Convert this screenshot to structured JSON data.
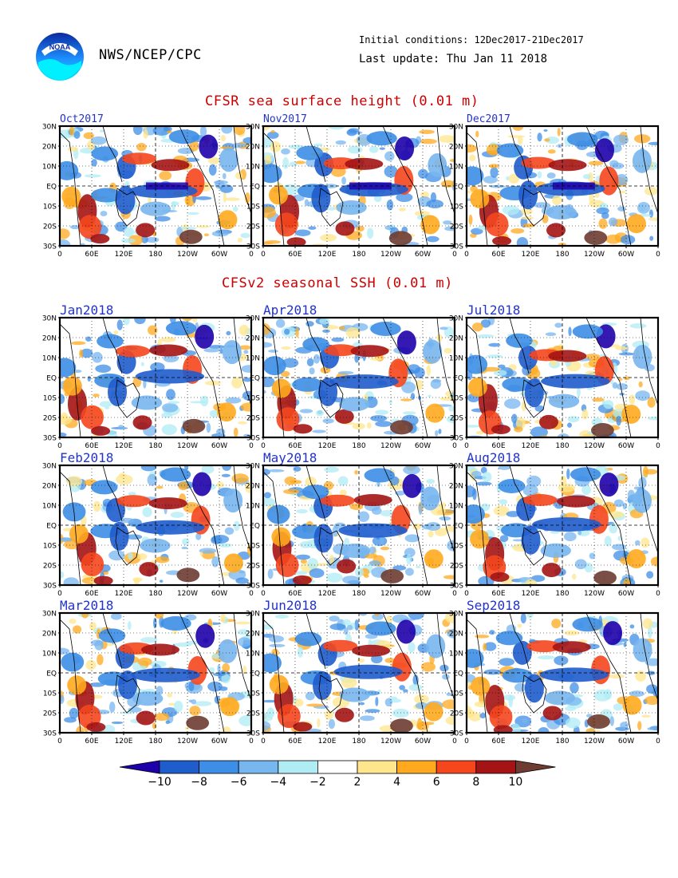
{
  "header": {
    "agency": "NWS/NCEP/CPC",
    "initial_conditions": "Initial conditions: 12Dec2017-21Dec2017",
    "last_update": "Last update: Thu Jan 11 2018",
    "logo_text": "NOAA"
  },
  "section_titles": {
    "observed": "CFSR sea surface height (0.01 m)",
    "forecast": "CFSv2 seasonal SSH (0.01 m)"
  },
  "axis": {
    "x_ticks": [
      "0",
      "60E",
      "120E",
      "180",
      "120W",
      "60W",
      "0"
    ],
    "y_ticks": [
      "30N",
      "20N",
      "10N",
      "EQ",
      "10S",
      "20S",
      "30S"
    ]
  },
  "colorbar": {
    "labels": [
      "−10",
      "−8",
      "−6",
      "−4",
      "−2",
      "2",
      "4",
      "6",
      "8",
      "10"
    ],
    "colors": [
      "#1e00aa",
      "#1f5ccc",
      "#3d8ee6",
      "#78b6f0",
      "#b0ecf4",
      "#ffffff",
      "#ffe68c",
      "#ffaa1e",
      "#f5461e",
      "#a51414",
      "#6e3c32"
    ]
  },
  "chart_data": [
    {
      "type": "heatmap",
      "title": "Oct2017",
      "variable": "sea surface height anomaly",
      "units": "0.01 m",
      "source": "CFSR",
      "xlim": [
        "0",
        "0"
      ],
      "ylim": [
        "30S",
        "30N"
      ]
    },
    {
      "type": "heatmap",
      "title": "Nov2017",
      "variable": "sea surface height anomaly",
      "units": "0.01 m",
      "source": "CFSR",
      "xlim": [
        "0",
        "0"
      ],
      "ylim": [
        "30S",
        "30N"
      ]
    },
    {
      "type": "heatmap",
      "title": "Dec2017",
      "variable": "sea surface height anomaly",
      "units": "0.01 m",
      "source": "CFSR",
      "xlim": [
        "0",
        "0"
      ],
      "ylim": [
        "30S",
        "30N"
      ]
    },
    {
      "type": "heatmap",
      "title": "Jan2018",
      "variable": "sea surface height anomaly",
      "units": "0.01 m",
      "source": "CFSv2",
      "xlim": [
        "0",
        "0"
      ],
      "ylim": [
        "30S",
        "30N"
      ]
    },
    {
      "type": "heatmap",
      "title": "Apr2018",
      "variable": "sea surface height anomaly",
      "units": "0.01 m",
      "source": "CFSv2",
      "xlim": [
        "0",
        "0"
      ],
      "ylim": [
        "30S",
        "30N"
      ]
    },
    {
      "type": "heatmap",
      "title": "Jul2018",
      "variable": "sea surface height anomaly",
      "units": "0.01 m",
      "source": "CFSv2",
      "xlim": [
        "0",
        "0"
      ],
      "ylim": [
        "30S",
        "30N"
      ]
    },
    {
      "type": "heatmap",
      "title": "Feb2018",
      "variable": "sea surface height anomaly",
      "units": "0.01 m",
      "source": "CFSv2",
      "xlim": [
        "0",
        "0"
      ],
      "ylim": [
        "30S",
        "30N"
      ]
    },
    {
      "type": "heatmap",
      "title": "May2018",
      "variable": "sea surface height anomaly",
      "units": "0.01 m",
      "source": "CFSv2",
      "xlim": [
        "0",
        "0"
      ],
      "ylim": [
        "30S",
        "30N"
      ]
    },
    {
      "type": "heatmap",
      "title": "Aug2018",
      "variable": "sea surface height anomaly",
      "units": "0.01 m",
      "source": "CFSv2",
      "xlim": [
        "0",
        "0"
      ],
      "ylim": [
        "30S",
        "30N"
      ]
    },
    {
      "type": "heatmap",
      "title": "Mar2018",
      "variable": "sea surface height anomaly",
      "units": "0.01 m",
      "source": "CFSv2",
      "xlim": [
        "0",
        "0"
      ],
      "ylim": [
        "30S",
        "30N"
      ]
    },
    {
      "type": "heatmap",
      "title": "Jun2018",
      "variable": "sea surface height anomaly",
      "units": "0.01 m",
      "source": "CFSv2",
      "xlim": [
        "0",
        "0"
      ],
      "ylim": [
        "30S",
        "30N"
      ]
    },
    {
      "type": "heatmap",
      "title": "Sep2018",
      "variable": "sea surface height anomaly",
      "units": "0.01 m",
      "source": "CFSv2",
      "xlim": [
        "0",
        "0"
      ],
      "ylim": [
        "30S",
        "30N"
      ]
    }
  ]
}
